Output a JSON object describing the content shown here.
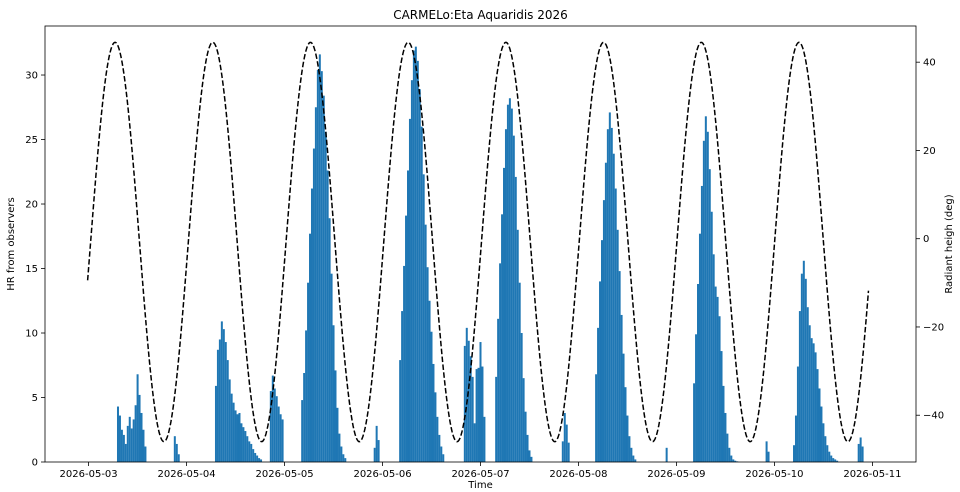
{
  "chart_data": {
    "type": "bar",
    "title": "CARMELo:Eta Aquaridis 2026",
    "xlabel": "Time",
    "ylabel": "HR from observers",
    "y2label": "Radiant heigh (deg)",
    "x_ticks": [
      "2026-05-03",
      "2026-05-04",
      "2026-05-05",
      "2026-05-06",
      "2026-05-07",
      "2026-05-08",
      "2026-05-09",
      "2026-05-10",
      "2026-05-11"
    ],
    "ylim": [
      0,
      33.8
    ],
    "y_ticks": [
      0,
      5,
      10,
      15,
      20,
      25,
      30
    ],
    "y2lim": [
      -50.6,
      48.2
    ],
    "y2_ticks": [
      -40,
      -20,
      0,
      20,
      40
    ],
    "xlim_days": [
      -0.445,
      8.445
    ],
    "grid": false,
    "series": [
      {
        "type": "bar",
        "color": "#1f77b4",
        "x_days": [
          0.3,
          0.32,
          0.34,
          0.36,
          0.38,
          0.4,
          0.42,
          0.44,
          0.46,
          0.48,
          0.5,
          0.52,
          0.54,
          0.56,
          0.58,
          0.6,
          0.62,
          0.64,
          0.66,
          0.68,
          0.88,
          0.9,
          0.92,
          1.3,
          1.32,
          1.34,
          1.36,
          1.38,
          1.4,
          1.42,
          1.44,
          1.46,
          1.48,
          1.5,
          1.52,
          1.54,
          1.56,
          1.58,
          1.6,
          1.62,
          1.64,
          1.66,
          1.68,
          1.7,
          1.72,
          1.74,
          1.76,
          1.86,
          1.88,
          1.9,
          1.92,
          1.94,
          1.96,
          1.98,
          2.18,
          2.2,
          2.22,
          2.24,
          2.26,
          2.28,
          2.3,
          2.32,
          2.34,
          2.36,
          2.38,
          2.4,
          2.42,
          2.44,
          2.46,
          2.48,
          2.5,
          2.52,
          2.54,
          2.56,
          2.58,
          2.6,
          2.62,
          2.92,
          2.94,
          2.96,
          3.18,
          3.2,
          3.22,
          3.24,
          3.26,
          3.28,
          3.3,
          3.32,
          3.34,
          3.36,
          3.38,
          3.4,
          3.42,
          3.44,
          3.46,
          3.48,
          3.5,
          3.52,
          3.54,
          3.56,
          3.58,
          3.6,
          3.62,
          3.84,
          3.86,
          3.88,
          3.9,
          3.92,
          3.94,
          3.96,
          3.98,
          4.0,
          4.02,
          4.04,
          4.16,
          4.18,
          4.2,
          4.22,
          4.24,
          4.26,
          4.28,
          4.3,
          4.32,
          4.34,
          4.36,
          4.38,
          4.4,
          4.42,
          4.44,
          4.46,
          4.48,
          4.5,
          4.52,
          4.84,
          4.86,
          4.88,
          4.9,
          5.18,
          5.2,
          5.22,
          5.24,
          5.26,
          5.28,
          5.3,
          5.32,
          5.34,
          5.36,
          5.38,
          5.4,
          5.42,
          5.44,
          5.46,
          5.48,
          5.5,
          5.52,
          5.54,
          5.56,
          5.58,
          5.9,
          6.18,
          6.2,
          6.22,
          6.24,
          6.26,
          6.28,
          6.3,
          6.32,
          6.34,
          6.36,
          6.38,
          6.4,
          6.42,
          6.44,
          6.46,
          6.48,
          6.5,
          6.52,
          6.54,
          6.56,
          6.58,
          6.6,
          6.62,
          6.92,
          6.94,
          7.2,
          7.22,
          7.24,
          7.26,
          7.28,
          7.3,
          7.32,
          7.34,
          7.36,
          7.38,
          7.4,
          7.42,
          7.44,
          7.46,
          7.48,
          7.5,
          7.52,
          7.54,
          7.56,
          7.58,
          7.6,
          7.62,
          7.64,
          7.86,
          7.88,
          7.9
        ],
        "values": [
          4.3,
          3.6,
          2.5,
          2.1,
          1.4,
          2.8,
          3.5,
          2.6,
          3.3,
          4.4,
          6.8,
          5.2,
          3.8,
          2.5,
          1.2,
          0,
          0,
          0,
          0,
          0,
          2.0,
          1.4,
          0.6,
          5.9,
          8.7,
          9.5,
          10.9,
          10.3,
          9.3,
          7.9,
          6.4,
          5.3,
          4.6,
          4.0,
          3.7,
          3.8,
          3.0,
          2.7,
          2.4,
          2.0,
          1.6,
          1.4,
          1.0,
          0.7,
          0.5,
          0.3,
          0.2,
          5.5,
          6.7,
          5.7,
          5.1,
          4.3,
          3.7,
          3.3,
          4.8,
          6.9,
          10.2,
          13.9,
          17.7,
          21.2,
          24.3,
          27.5,
          30.4,
          31.6,
          30.3,
          28.4,
          25.6,
          22.6,
          18.9,
          14.6,
          10.6,
          7.1,
          4.2,
          2.2,
          1.2,
          0.6,
          0.3,
          1.1,
          2.8,
          1.7,
          7.9,
          11.7,
          15.2,
          19.1,
          22.6,
          26.6,
          29.6,
          31.9,
          32.2,
          31.1,
          28.9,
          26.0,
          22.3,
          18.4,
          15.1,
          12.5,
          10.1,
          7.6,
          5.4,
          3.5,
          2.1,
          1.2,
          0.6,
          9.0,
          10.4,
          9.4,
          8.2,
          6.6,
          3.0,
          7.2,
          7.3,
          9.3,
          7.4,
          3.5,
          6.6,
          11.1,
          15.4,
          19.2,
          22.8,
          25.8,
          27.7,
          28.2,
          27.4,
          25.3,
          22.1,
          18.0,
          13.9,
          10.0,
          6.5,
          3.9,
          2.1,
          0.9,
          0.4,
          1.6,
          3.8,
          2.9,
          1.5,
          6.8,
          10.4,
          14.0,
          17.2,
          20.3,
          23.2,
          25.8,
          27.1,
          25.9,
          23.9,
          21.2,
          18.0,
          14.8,
          11.4,
          8.4,
          5.8,
          3.6,
          2.0,
          1.1,
          0.5,
          0.2,
          1.1,
          6.1,
          9.9,
          13.8,
          17.7,
          21.4,
          24.9,
          26.8,
          25.6,
          22.7,
          19.4,
          16.1,
          13.6,
          12.8,
          11.3,
          8.6,
          5.9,
          3.8,
          2.2,
          1.1,
          0.5,
          0.2,
          0.1,
          0.05,
          1.6,
          0.8,
          1.3,
          3.6,
          7.4,
          11.7,
          14.6,
          15.6,
          14.2,
          12.0,
          10.6,
          9.6,
          9.2,
          8.5,
          7.2,
          5.7,
          4.3,
          3.0,
          2.0,
          1.3,
          0.8,
          0.5,
          0.3,
          0.2,
          0.1,
          1.4,
          1.9,
          1.2
        ]
      },
      {
        "type": "line",
        "style": "dashed",
        "color": "#000000",
        "axis": "right",
        "description_of_curve": "sinusoid",
        "min": -46,
        "max": 44.5,
        "first_peak_day": 0.27,
        "period_days": 0.9973,
        "x_start_day": -0.01,
        "x_end_day": 7.96
      }
    ]
  }
}
